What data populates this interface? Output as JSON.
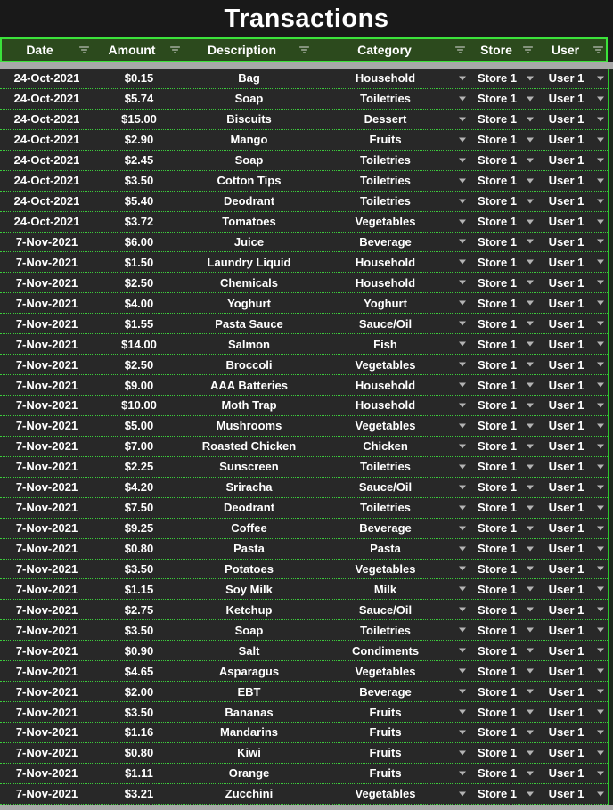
{
  "title": "Transactions",
  "colors": {
    "header_bg": "#2c4a1d",
    "header_border": "#3be33b",
    "row_bg": "#282828",
    "row_separator": "#3ccc3c",
    "title_bg": "#191919",
    "divider_gray": "#a8a8a8",
    "text": "#ffffff",
    "dropdown_arrow": "#b4b4b4"
  },
  "icons": {
    "filter": "filter-lines",
    "dropdown": "triangle-down"
  },
  "table": {
    "columns": [
      {
        "label": "Date"
      },
      {
        "label": "Amount"
      },
      {
        "label": "Description"
      },
      {
        "label": "Category"
      },
      {
        "label": "Store"
      },
      {
        "label": "User"
      }
    ],
    "rows": [
      {
        "date": "24-Oct-2021",
        "amount": "$0.15",
        "description": "Bag",
        "category": "Household",
        "store": "Store 1",
        "user": "User 1"
      },
      {
        "date": "24-Oct-2021",
        "amount": "$5.74",
        "description": "Soap",
        "category": "Toiletries",
        "store": "Store 1",
        "user": "User 1"
      },
      {
        "date": "24-Oct-2021",
        "amount": "$15.00",
        "description": "Biscuits",
        "category": "Dessert",
        "store": "Store 1",
        "user": "User 1"
      },
      {
        "date": "24-Oct-2021",
        "amount": "$2.90",
        "description": "Mango",
        "category": "Fruits",
        "store": "Store 1",
        "user": "User 1"
      },
      {
        "date": "24-Oct-2021",
        "amount": "$2.45",
        "description": "Soap",
        "category": "Toiletries",
        "store": "Store 1",
        "user": "User 1"
      },
      {
        "date": "24-Oct-2021",
        "amount": "$3.50",
        "description": "Cotton Tips",
        "category": "Toiletries",
        "store": "Store 1",
        "user": "User 1"
      },
      {
        "date": "24-Oct-2021",
        "amount": "$5.40",
        "description": "Deodrant",
        "category": "Toiletries",
        "store": "Store 1",
        "user": "User 1"
      },
      {
        "date": "24-Oct-2021",
        "amount": "$3.72",
        "description": "Tomatoes",
        "category": "Vegetables",
        "store": "Store 1",
        "user": "User 1"
      },
      {
        "date": "7-Nov-2021",
        "amount": "$6.00",
        "description": "Juice",
        "category": "Beverage",
        "store": "Store 1",
        "user": "User 1"
      },
      {
        "date": "7-Nov-2021",
        "amount": "$1.50",
        "description": "Laundry Liquid",
        "category": "Household",
        "store": "Store 1",
        "user": "User 1"
      },
      {
        "date": "7-Nov-2021",
        "amount": "$2.50",
        "description": "Chemicals",
        "category": "Household",
        "store": "Store 1",
        "user": "User 1"
      },
      {
        "date": "7-Nov-2021",
        "amount": "$4.00",
        "description": "Yoghurt",
        "category": "Yoghurt",
        "store": "Store 1",
        "user": "User 1"
      },
      {
        "date": "7-Nov-2021",
        "amount": "$1.55",
        "description": "Pasta Sauce",
        "category": "Sauce/Oil",
        "store": "Store 1",
        "user": "User 1"
      },
      {
        "date": "7-Nov-2021",
        "amount": "$14.00",
        "description": "Salmon",
        "category": "Fish",
        "store": "Store 1",
        "user": "User 1"
      },
      {
        "date": "7-Nov-2021",
        "amount": "$2.50",
        "description": "Broccoli",
        "category": "Vegetables",
        "store": "Store 1",
        "user": "User 1"
      },
      {
        "date": "7-Nov-2021",
        "amount": "$9.00",
        "description": "AAA Batteries",
        "category": "Household",
        "store": "Store 1",
        "user": "User 1"
      },
      {
        "date": "7-Nov-2021",
        "amount": "$10.00",
        "description": "Moth Trap",
        "category": "Household",
        "store": "Store 1",
        "user": "User 1"
      },
      {
        "date": "7-Nov-2021",
        "amount": "$5.00",
        "description": "Mushrooms",
        "category": "Vegetables",
        "store": "Store 1",
        "user": "User 1"
      },
      {
        "date": "7-Nov-2021",
        "amount": "$7.00",
        "description": "Roasted Chicken",
        "category": "Chicken",
        "store": "Store 1",
        "user": "User 1"
      },
      {
        "date": "7-Nov-2021",
        "amount": "$2.25",
        "description": "Sunscreen",
        "category": "Toiletries",
        "store": "Store 1",
        "user": "User 1"
      },
      {
        "date": "7-Nov-2021",
        "amount": "$4.20",
        "description": "Sriracha",
        "category": "Sauce/Oil",
        "store": "Store 1",
        "user": "User 1"
      },
      {
        "date": "7-Nov-2021",
        "amount": "$7.50",
        "description": "Deodrant",
        "category": "Toiletries",
        "store": "Store 1",
        "user": "User 1"
      },
      {
        "date": "7-Nov-2021",
        "amount": "$9.25",
        "description": "Coffee",
        "category": "Beverage",
        "store": "Store 1",
        "user": "User 1"
      },
      {
        "date": "7-Nov-2021",
        "amount": "$0.80",
        "description": "Pasta",
        "category": "Pasta",
        "store": "Store 1",
        "user": "User 1"
      },
      {
        "date": "7-Nov-2021",
        "amount": "$3.50",
        "description": "Potatoes",
        "category": "Vegetables",
        "store": "Store 1",
        "user": "User 1"
      },
      {
        "date": "7-Nov-2021",
        "amount": "$1.15",
        "description": "Soy Milk",
        "category": "Milk",
        "store": "Store 1",
        "user": "User 1"
      },
      {
        "date": "7-Nov-2021",
        "amount": "$2.75",
        "description": "Ketchup",
        "category": "Sauce/Oil",
        "store": "Store 1",
        "user": "User 1"
      },
      {
        "date": "7-Nov-2021",
        "amount": "$3.50",
        "description": "Soap",
        "category": "Toiletries",
        "store": "Store 1",
        "user": "User 1"
      },
      {
        "date": "7-Nov-2021",
        "amount": "$0.90",
        "description": "Salt",
        "category": "Condiments",
        "store": "Store 1",
        "user": "User 1"
      },
      {
        "date": "7-Nov-2021",
        "amount": "$4.65",
        "description": "Asparagus",
        "category": "Vegetables",
        "store": "Store 1",
        "user": "User 1"
      },
      {
        "date": "7-Nov-2021",
        "amount": "$2.00",
        "description": "EBT",
        "category": "Beverage",
        "store": "Store 1",
        "user": "User 1"
      },
      {
        "date": "7-Nov-2021",
        "amount": "$3.50",
        "description": "Bananas",
        "category": "Fruits",
        "store": "Store 1",
        "user": "User 1"
      },
      {
        "date": "7-Nov-2021",
        "amount": "$1.16",
        "description": "Mandarins",
        "category": "Fruits",
        "store": "Store 1",
        "user": "User 1"
      },
      {
        "date": "7-Nov-2021",
        "amount": "$0.80",
        "description": "Kiwi",
        "category": "Fruits",
        "store": "Store 1",
        "user": "User 1"
      },
      {
        "date": "7-Nov-2021",
        "amount": "$1.11",
        "description": "Orange",
        "category": "Fruits",
        "store": "Store 1",
        "user": "User 1"
      },
      {
        "date": "7-Nov-2021",
        "amount": "$3.21",
        "description": "Zucchini",
        "category": "Vegetables",
        "store": "Store 1",
        "user": "User 1"
      }
    ]
  }
}
